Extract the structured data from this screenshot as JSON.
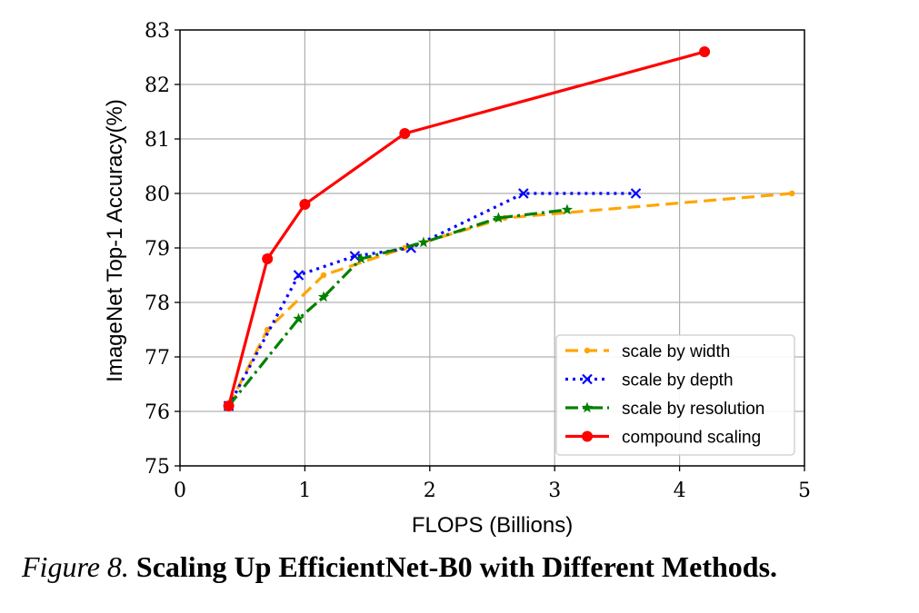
{
  "chart_data": {
    "type": "line",
    "title": "",
    "xlabel": "FLOPS (Billions)",
    "ylabel": "ImageNet Top-1 Accuracy(%)",
    "xlim": [
      0,
      5
    ],
    "ylim": [
      75,
      83
    ],
    "xticks": [
      "0",
      "1",
      "2",
      "3",
      "4",
      "5"
    ],
    "yticks": [
      "75",
      "76",
      "77",
      "78",
      "79",
      "80",
      "81",
      "82",
      "83"
    ],
    "grid": true,
    "legend_position": "lower-right",
    "series": [
      {
        "name": "scale by width",
        "color": "#FFA500",
        "linestyle": "dashed",
        "marker": "dot",
        "x": [
          0.39,
          0.7,
          1.15,
          1.8,
          2.6,
          4.9
        ],
        "y": [
          76.1,
          77.5,
          78.5,
          79.0,
          79.55,
          80.0
        ]
      },
      {
        "name": "scale by depth",
        "color": "#0000FF",
        "linestyle": "dotted",
        "marker": "x",
        "x": [
          0.39,
          0.95,
          1.4,
          1.85,
          2.75,
          3.65
        ],
        "y": [
          76.1,
          78.5,
          78.85,
          79.0,
          80.0,
          80.0
        ]
      },
      {
        "name": "scale by resolution",
        "color": "#008000",
        "linestyle": "dashdot",
        "marker": "star",
        "x": [
          0.39,
          0.95,
          1.15,
          1.45,
          1.95,
          2.55,
          3.1
        ],
        "y": [
          76.1,
          77.7,
          78.1,
          78.8,
          79.1,
          79.55,
          79.7
        ]
      },
      {
        "name": "compound scaling",
        "color": "#FF0000",
        "linestyle": "solid",
        "marker": "circle",
        "x": [
          0.39,
          0.7,
          1.0,
          1.8,
          4.2
        ],
        "y": [
          76.1,
          78.8,
          79.8,
          81.1,
          82.6
        ]
      }
    ]
  },
  "caption": {
    "label": "Figure 8.",
    "title": "Scaling Up EfficientNet-B0 with Different Methods."
  }
}
